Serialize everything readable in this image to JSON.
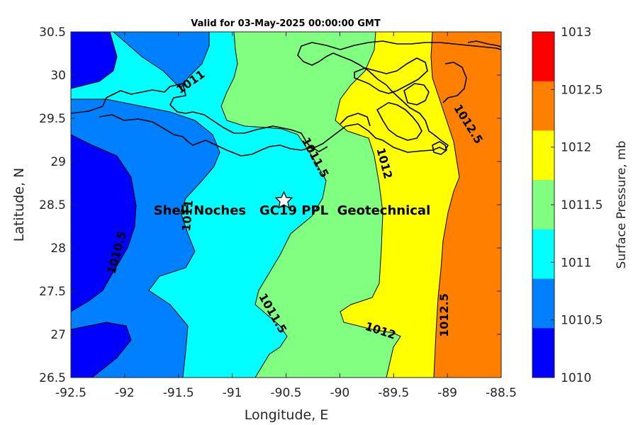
{
  "title": "Valid for 03-May-2025 00:00:00 GMT",
  "xlabel": "Longitude, E",
  "ylabel": "Latitude, N",
  "colorbar_label": "Surface Pressure, mb",
  "site_label": "Shell Noches   GC19 PPL  Geotechnical",
  "site_marker": "star-icon",
  "chart_data": {
    "type": "filled-contour-map",
    "xlim": [
      -92.5,
      -88.5
    ],
    "ylim": [
      26.5,
      30.5
    ],
    "xticks": [
      "-92.5",
      "-92",
      "-91.5",
      "-91",
      "-90.5",
      "-90",
      "-89.5",
      "-89",
      "-88.5"
    ],
    "yticks": [
      "30.5",
      "30",
      "29.5",
      "29",
      "28.5",
      "28",
      "27.5",
      "27",
      "26.5"
    ],
    "colorbar_ticks": [
      "1013",
      "1012.5",
      "1012",
      "1011.5",
      "1011",
      "1010.5",
      "1010"
    ],
    "levels": [
      1010,
      1010.5,
      1011,
      1011.5,
      1012,
      1012.5,
      1013
    ],
    "level_colors": [
      "#0000ff",
      "#0080ff",
      "#00ffff",
      "#80ff80",
      "#ffff00",
      "#ff8000",
      "#ff0000"
    ],
    "contour_labels": [
      "1011",
      "1011.5",
      "1012",
      "1012.5",
      "1011",
      "1010.5",
      "1011.5",
      "1012",
      "1012.5"
    ],
    "site": {
      "lon": -90.52,
      "lat": 28.55
    }
  }
}
